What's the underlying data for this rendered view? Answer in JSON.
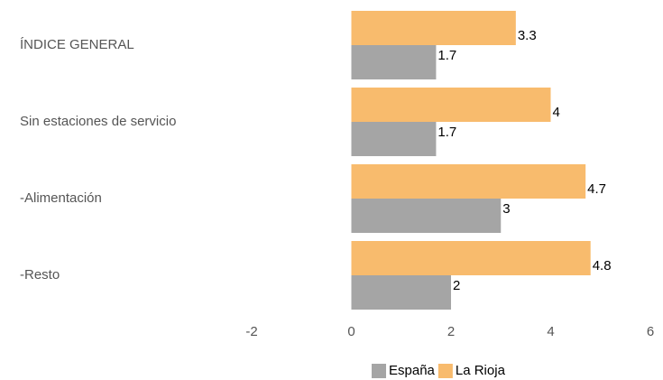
{
  "chart_data": {
    "type": "hbar",
    "categories": [
      "ÍNDICE GENERAL",
      "Sin estaciones de servicio",
      "-Alimentación",
      "-Resto"
    ],
    "series": [
      {
        "name": "España",
        "color": "#a5a5a5",
        "values": [
          1.7,
          1.7,
          3,
          2
        ]
      },
      {
        "name": "La Rioja",
        "color": "#f8bb6d",
        "values": [
          3.3,
          4,
          4.7,
          4.8
        ]
      }
    ],
    "xlim": [
      -2,
      6
    ],
    "xticks": [
      -2,
      0,
      2,
      4,
      6
    ],
    "grid": false,
    "legend": "bottom"
  }
}
